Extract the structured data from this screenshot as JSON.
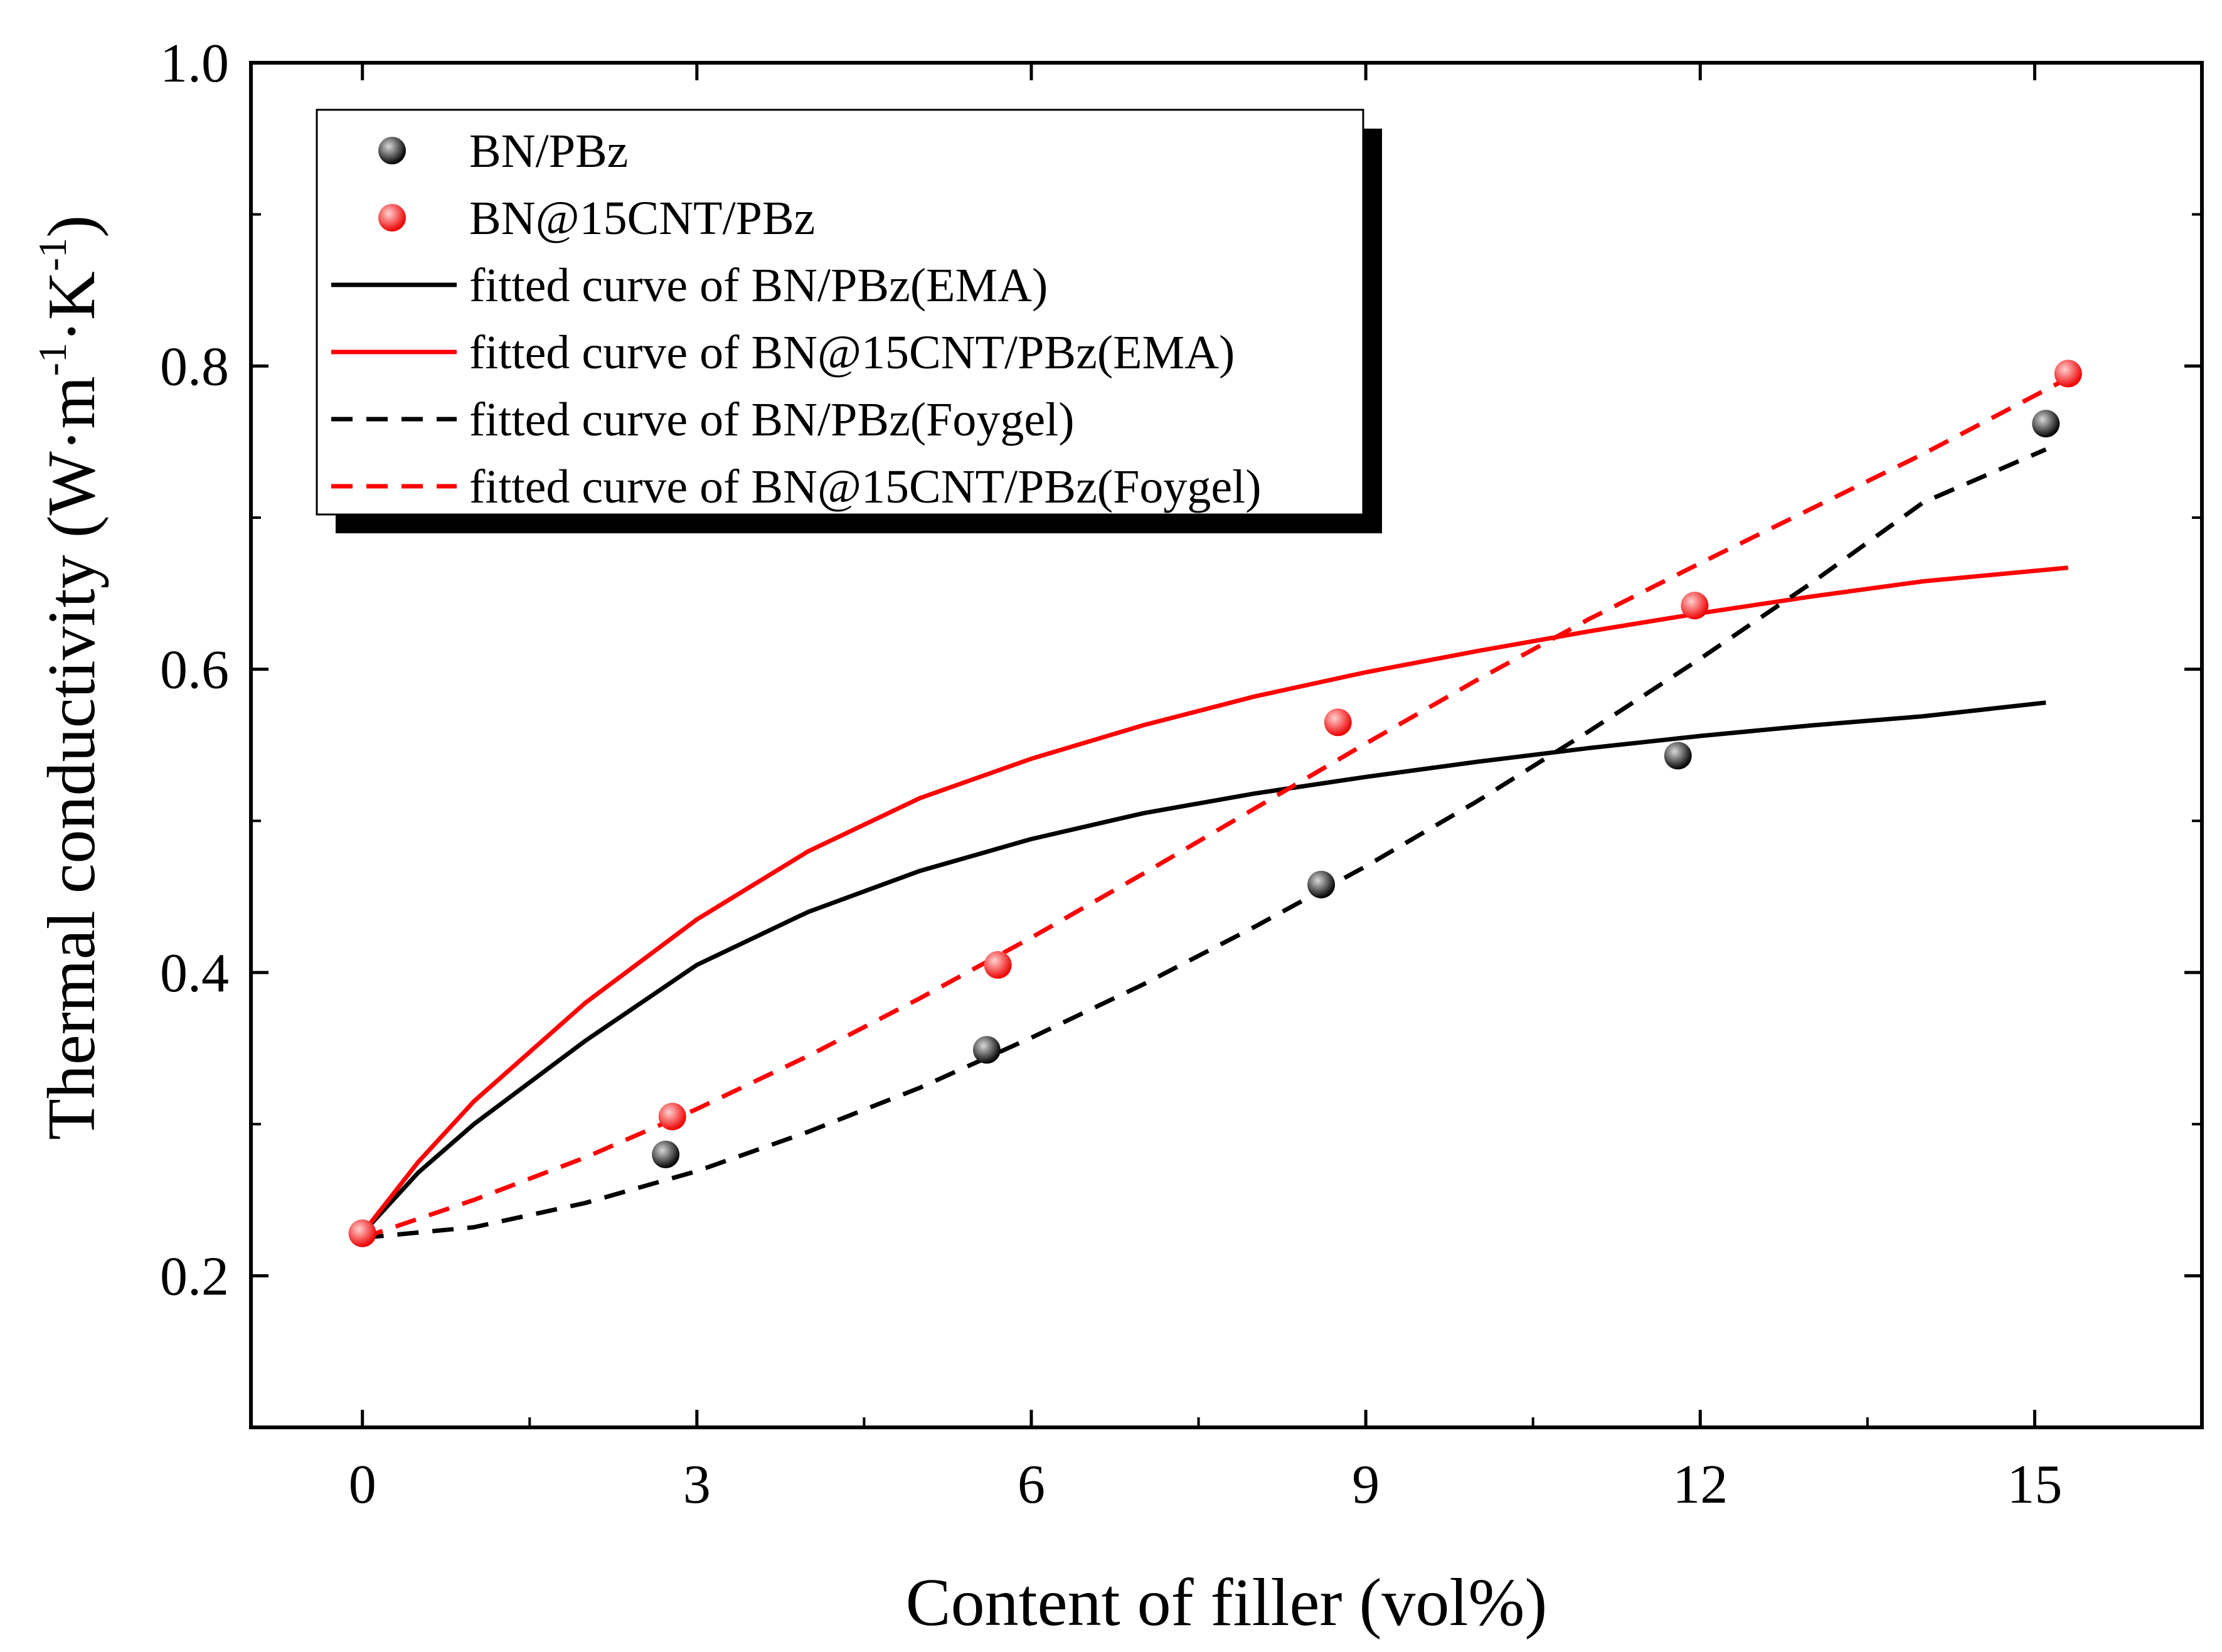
{
  "chart_data": {
    "type": "scatter",
    "xlabel": "Content of filler (vol%)",
    "ylabel": "Thermal conductivity (W·m",
    "ylabel_sup1": "-1",
    "ylabel_mid": "·K",
    "ylabel_sup2": "-1",
    "ylabel_end": ")",
    "xlim": [
      -1,
      16.5
    ],
    "ylim": [
      0.1,
      1.0
    ],
    "xticks": [
      0,
      3,
      6,
      9,
      12,
      15
    ],
    "yticks": [
      0.2,
      0.4,
      0.6,
      0.8,
      1.0
    ],
    "ytick_labels": [
      "0.2",
      "0.4",
      "0.6",
      "0.8",
      "1.0"
    ],
    "legend_position": "top-left",
    "series": [
      {
        "name": "BN/PBz",
        "kind": "points",
        "color": "#000000",
        "x": [
          0,
          2.72,
          5.6,
          8.6,
          11.8,
          15.1
        ],
        "y": [
          0.228,
          0.28,
          0.349,
          0.458,
          0.543,
          0.762
        ]
      },
      {
        "name": "BN@15CNT/PBz",
        "kind": "points",
        "color": "#ff0000",
        "x": [
          0,
          2.78,
          5.7,
          8.75,
          11.95,
          15.3
        ],
        "y": [
          0.228,
          0.305,
          0.405,
          0.565,
          0.642,
          0.795
        ]
      },
      {
        "name": "fitted curve of BN/PBz(EMA)",
        "kind": "line",
        "dash": "solid",
        "color": "#000000",
        "x": [
          0,
          0.5,
          1,
          2,
          3,
          4,
          5,
          6,
          7,
          8,
          9,
          10,
          11,
          12,
          13,
          14,
          15.1
        ],
        "y": [
          0.228,
          0.268,
          0.3,
          0.355,
          0.405,
          0.44,
          0.467,
          0.488,
          0.505,
          0.518,
          0.529,
          0.539,
          0.548,
          0.556,
          0.563,
          0.569,
          0.578
        ]
      },
      {
        "name": "fitted curve of BN@15CNT/PBz(EMA)",
        "kind": "line",
        "dash": "solid",
        "color": "#ff0000",
        "x": [
          0,
          0.5,
          1,
          2,
          3,
          4,
          5,
          6,
          7,
          8,
          9,
          10,
          11,
          12,
          13,
          14,
          15.3
        ],
        "y": [
          0.228,
          0.275,
          0.315,
          0.38,
          0.435,
          0.48,
          0.515,
          0.541,
          0.563,
          0.582,
          0.598,
          0.612,
          0.625,
          0.637,
          0.648,
          0.658,
          0.667
        ]
      },
      {
        "name": "fitted curve of BN/PBz(Foygel)",
        "kind": "line",
        "dash": "dashed",
        "color": "#000000",
        "x": [
          0,
          1,
          2,
          3,
          4,
          5,
          6,
          7,
          8,
          9,
          10,
          11,
          12,
          13,
          14,
          15.1
        ],
        "y": [
          0.225,
          0.232,
          0.248,
          0.269,
          0.295,
          0.324,
          0.357,
          0.392,
          0.43,
          0.47,
          0.513,
          0.559,
          0.607,
          0.657,
          0.71,
          0.745
        ]
      },
      {
        "name": "fitted curve of BN@15CNT/PBz(Foygel)",
        "kind": "line",
        "dash": "dashed",
        "color": "#ff0000",
        "x": [
          0,
          1,
          2,
          3,
          4,
          5,
          6,
          7,
          8,
          9,
          10,
          11,
          12,
          13,
          14,
          15.3
        ],
        "y": [
          0.225,
          0.25,
          0.278,
          0.31,
          0.345,
          0.383,
          0.423,
          0.465,
          0.508,
          0.551,
          0.593,
          0.633,
          0.67,
          0.706,
          0.742,
          0.792
        ]
      }
    ]
  }
}
